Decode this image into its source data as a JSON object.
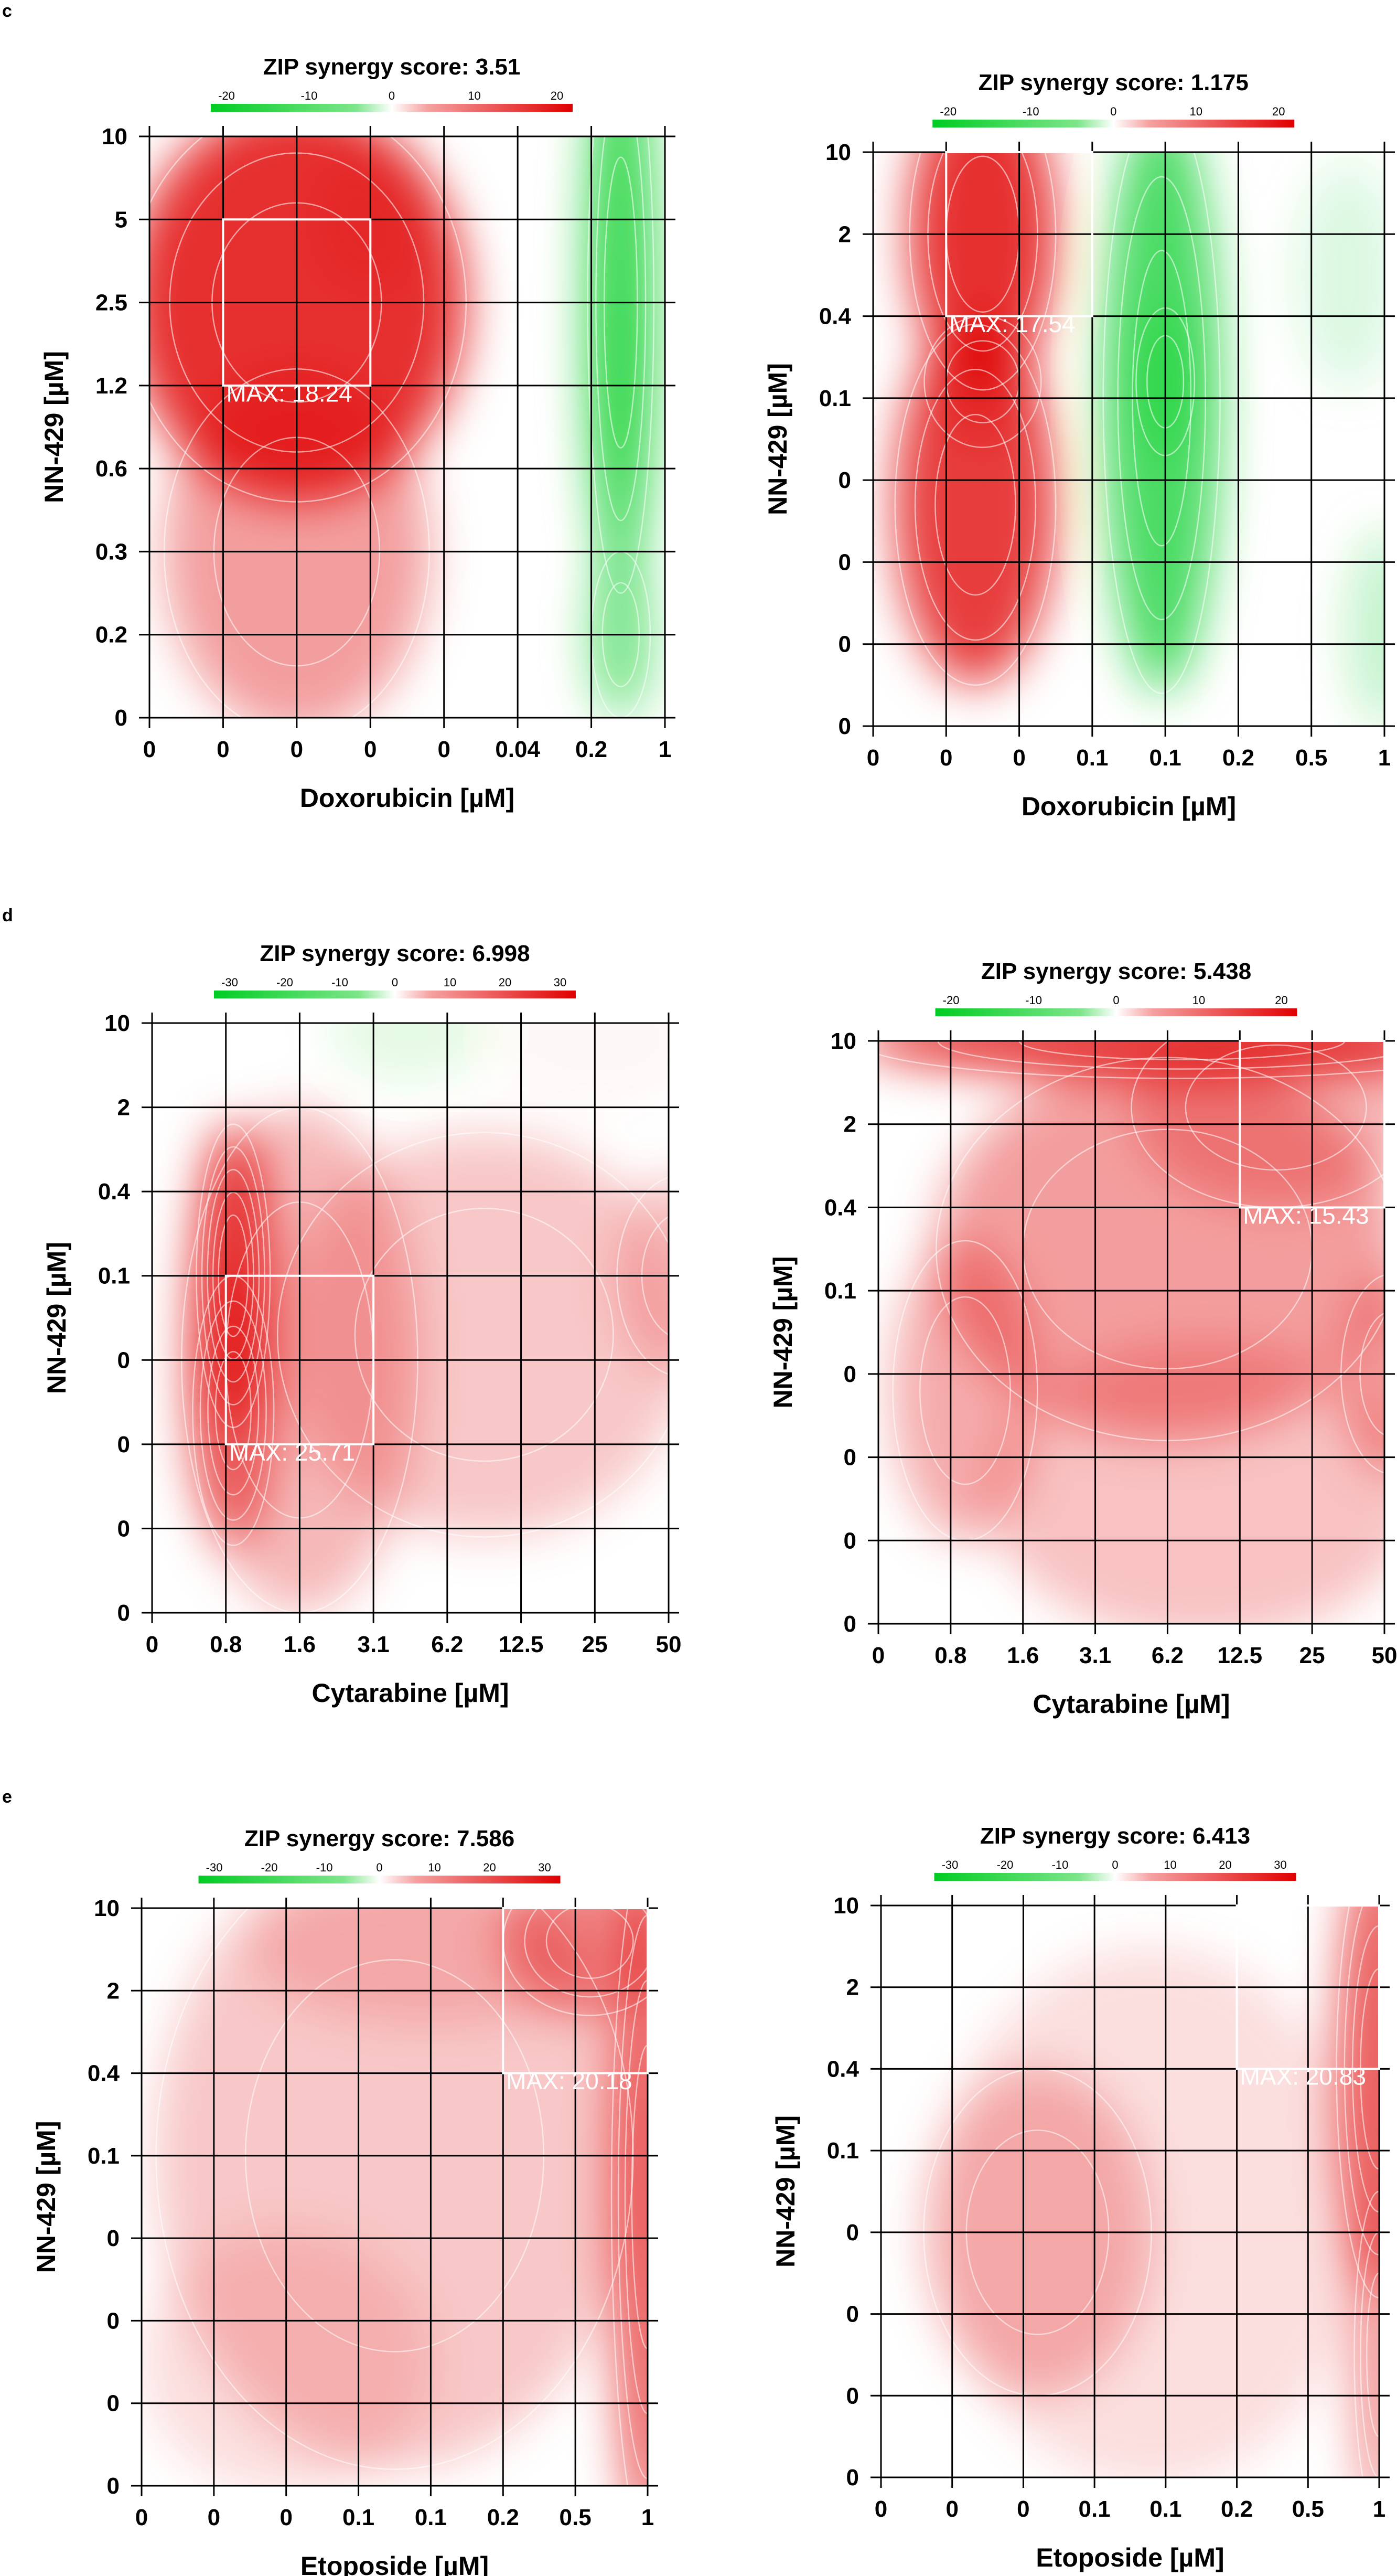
{
  "colors": {
    "synergy": "#e00000",
    "antagonism": "#00cc22",
    "neutral": "#ffffff",
    "grid": "#000000",
    "contour": "#ffffff",
    "text": "#000000"
  },
  "panels": [
    {
      "label": "c"
    },
    {
      "label": "d"
    },
    {
      "label": "e"
    }
  ],
  "chart_data": [
    {
      "type": "heatmap",
      "panel": "c",
      "title": "ZIP synergy score: 3.51",
      "xlabel": "Doxorubicin [µM]",
      "ylabel": "NN-429 [µM]",
      "x_ticks": [
        "0",
        "0",
        "0",
        "0",
        "0",
        "0.04",
        "0.2",
        "1"
      ],
      "y_ticks": [
        "0",
        "0.2",
        "0.3",
        "0.6",
        "1.2",
        "2.5",
        "5",
        "10"
      ],
      "colorbar_ticks": [
        -20,
        -10,
        0,
        10,
        20
      ],
      "colorbar_range": [
        -20,
        20
      ],
      "max_label": "MAX: 18.24",
      "max_region": {
        "x_from": 1,
        "x_to": 3,
        "y_from": 4,
        "y_to": 6
      },
      "blobs": [
        {
          "x": 2.0,
          "y": 5.0,
          "rx": 2.3,
          "ry": 2.4,
          "v": 17
        },
        {
          "x": 3.0,
          "y": 6.0,
          "rx": 0.8,
          "ry": 0.9,
          "v": 4
        },
        {
          "x": 2.0,
          "y": 2.0,
          "rx": 1.8,
          "ry": 2.2,
          "v": 8
        },
        {
          "x": 6.4,
          "y": 5.0,
          "rx": 0.45,
          "ry": 3.5,
          "v": -17
        },
        {
          "x": 6.4,
          "y": 4.0,
          "rx": 0.35,
          "ry": 1.0,
          "v": -5
        },
        {
          "x": 6.4,
          "y": 1.0,
          "rx": 0.4,
          "ry": 1.0,
          "v": -12
        }
      ]
    },
    {
      "type": "heatmap",
      "panel": "c",
      "title": "ZIP synergy score: 1.175",
      "xlabel": "Doxorubicin [µM]",
      "ylabel": "NN-429 [µM]",
      "x_ticks": [
        "0",
        "0",
        "0",
        "0.1",
        "0.1",
        "0.2",
        "0.5",
        "1"
      ],
      "y_ticks": [
        "0",
        "0",
        "0",
        "0",
        "0.1",
        "0.4",
        "2",
        "10"
      ],
      "colorbar_ticks": [
        -20,
        -10,
        0,
        10,
        20
      ],
      "colorbar_range": [
        -20,
        20
      ],
      "max_label": "MAX: 17.54",
      "max_region": {
        "x_from": 1,
        "x_to": 3,
        "y_from": 5,
        "y_to": 7
      },
      "blobs": [
        {
          "x": 1.5,
          "y": 6.0,
          "rx": 1.0,
          "ry": 1.9,
          "v": 17
        },
        {
          "x": 1.4,
          "y": 2.7,
          "rx": 1.1,
          "ry": 2.2,
          "v": 16
        },
        {
          "x": 1.5,
          "y": 4.2,
          "rx": 0.8,
          "ry": 0.8,
          "v": 6
        },
        {
          "x": 3.95,
          "y": 4.0,
          "rx": 0.8,
          "ry": 3.6,
          "v": -15
        },
        {
          "x": 4.0,
          "y": 4.2,
          "rx": 0.4,
          "ry": 0.9,
          "v": -8
        },
        {
          "x": 6.5,
          "y": 5.5,
          "rx": 0.7,
          "ry": 1.4,
          "v": -3
        },
        {
          "x": 7.0,
          "y": 1.2,
          "rx": 0.5,
          "ry": 1.2,
          "v": -5
        }
      ]
    },
    {
      "type": "heatmap",
      "panel": "d",
      "title": "ZIP synergy score: 6.998",
      "xlabel": "Cytarabine [µM]",
      "ylabel": "NN-429 [µM]",
      "x_ticks": [
        "0",
        "0.8",
        "1.6",
        "3.1",
        "6.2",
        "12.5",
        "25",
        "50"
      ],
      "y_ticks": [
        "0",
        "0",
        "0",
        "0",
        "0.1",
        "0.4",
        "2",
        "10"
      ],
      "colorbar_ticks": [
        -30,
        -20,
        -10,
        0,
        10,
        20,
        30
      ],
      "colorbar_range": [
        -30,
        30
      ],
      "max_label": "MAX: 25.71",
      "max_region": {
        "x_from": 1,
        "x_to": 3,
        "y_from": 2,
        "y_to": 4
      },
      "blobs": [
        {
          "x": 1.1,
          "y": 4.0,
          "rx": 0.5,
          "ry": 1.8,
          "v": 25
        },
        {
          "x": 1.1,
          "y": 2.4,
          "rx": 0.55,
          "ry": 1.6,
          "v": 18
        },
        {
          "x": 2.0,
          "y": 3.0,
          "rx": 1.6,
          "ry": 3.0,
          "v": 9
        },
        {
          "x": 4.5,
          "y": 3.3,
          "rx": 2.8,
          "ry": 2.4,
          "v": 7
        },
        {
          "x": 7.2,
          "y": 4.0,
          "rx": 0.9,
          "ry": 1.2,
          "v": 7
        },
        {
          "x": 3.5,
          "y": 6.9,
          "rx": 1.1,
          "ry": 0.6,
          "v": -3
        },
        {
          "x": 6.0,
          "y": 6.8,
          "rx": 1.4,
          "ry": 0.8,
          "v": 1
        }
      ]
    },
    {
      "type": "heatmap",
      "panel": "d",
      "title": "ZIP synergy score: 5.438",
      "xlabel": "Cytarabine [µM]",
      "ylabel": "NN-429 [µM]",
      "x_ticks": [
        "0",
        "0.8",
        "1.6",
        "3.1",
        "6.2",
        "12.5",
        "25",
        "50"
      ],
      "y_ticks": [
        "0",
        "0",
        "0",
        "0",
        "0.1",
        "0.4",
        "2",
        "10"
      ],
      "colorbar_ticks": [
        -20,
        -10,
        0,
        10,
        20
      ],
      "colorbar_range": [
        -20,
        20
      ],
      "max_label": "MAX: 15.43",
      "max_region": {
        "x_from": 5,
        "x_to": 7,
        "y_from": 5,
        "y_to": 7
      },
      "blobs": [
        {
          "x": 4.2,
          "y": 7.0,
          "rx": 4.5,
          "ry": 0.45,
          "v": 16
        },
        {
          "x": 4.0,
          "y": 4.5,
          "rx": 3.2,
          "ry": 2.3,
          "v": 8
        },
        {
          "x": 1.2,
          "y": 2.8,
          "rx": 1.0,
          "ry": 1.8,
          "v": 7
        },
        {
          "x": 7.1,
          "y": 3.0,
          "rx": 0.7,
          "ry": 1.2,
          "v": 8
        },
        {
          "x": 4.5,
          "y": 1.6,
          "rx": 3.0,
          "ry": 1.8,
          "v": 5
        },
        {
          "x": 5.5,
          "y": 6.2,
          "rx": 2.0,
          "ry": 1.2,
          "v": 6
        }
      ]
    },
    {
      "type": "heatmap",
      "panel": "e",
      "title": "ZIP synergy score: 7.586",
      "xlabel": "Etoposide [µM]",
      "ylabel": "NN-429 [µM]",
      "x_ticks": [
        "0",
        "0",
        "0",
        "0.1",
        "0.1",
        "0.2",
        "0.5",
        "1"
      ],
      "y_ticks": [
        "0",
        "0",
        "0",
        "0",
        "0.1",
        "0.4",
        "2",
        "10"
      ],
      "colorbar_ticks": [
        -30,
        -20,
        -10,
        0,
        10,
        20,
        30
      ],
      "colorbar_range": [
        -30,
        30
      ],
      "max_label": "MAX: 20.18",
      "max_region": {
        "x_from": 5,
        "x_to": 7,
        "y_from": 5,
        "y_to": 7
      },
      "blobs": [
        {
          "x": 7.0,
          "y": 3.5,
          "rx": 0.5,
          "ry": 4.2,
          "v": 20
        },
        {
          "x": 6.2,
          "y": 6.6,
          "rx": 1.2,
          "ry": 0.9,
          "v": 14
        },
        {
          "x": 3.5,
          "y": 4.0,
          "rx": 3.3,
          "ry": 3.8,
          "v": 7
        },
        {
          "x": 2.0,
          "y": 1.5,
          "rx": 2.0,
          "ry": 1.6,
          "v": 4
        },
        {
          "x": 4.0,
          "y": 6.5,
          "rx": 2.5,
          "ry": 0.9,
          "v": 5
        }
      ]
    },
    {
      "type": "heatmap",
      "panel": "e",
      "title": "ZIP synergy score: 6.413",
      "xlabel": "Etoposide [µM]",
      "ylabel": "NN-429 [µM]",
      "x_ticks": [
        "0",
        "0",
        "0",
        "0.1",
        "0.1",
        "0.2",
        "0.5",
        "1"
      ],
      "y_ticks": [
        "0",
        "0",
        "0",
        "0",
        "0.1",
        "0.4",
        "2",
        "10"
      ],
      "colorbar_ticks": [
        -30,
        -20,
        -10,
        0,
        10,
        20,
        30
      ],
      "colorbar_range": [
        -30,
        30
      ],
      "max_label": "MAX: 20.83",
      "max_region": {
        "x_from": 5,
        "x_to": 7,
        "y_from": 5,
        "y_to": 7
      },
      "blobs": [
        {
          "x": 7.0,
          "y": 5.0,
          "rx": 0.6,
          "ry": 2.8,
          "v": 20
        },
        {
          "x": 7.0,
          "y": 1.5,
          "rx": 0.35,
          "ry": 2.0,
          "v": 14
        },
        {
          "x": 2.2,
          "y": 3.0,
          "rx": 1.6,
          "ry": 2.0,
          "v": 8
        },
        {
          "x": 3.8,
          "y": 3.2,
          "rx": 3.0,
          "ry": 3.3,
          "v": 4
        }
      ]
    }
  ]
}
